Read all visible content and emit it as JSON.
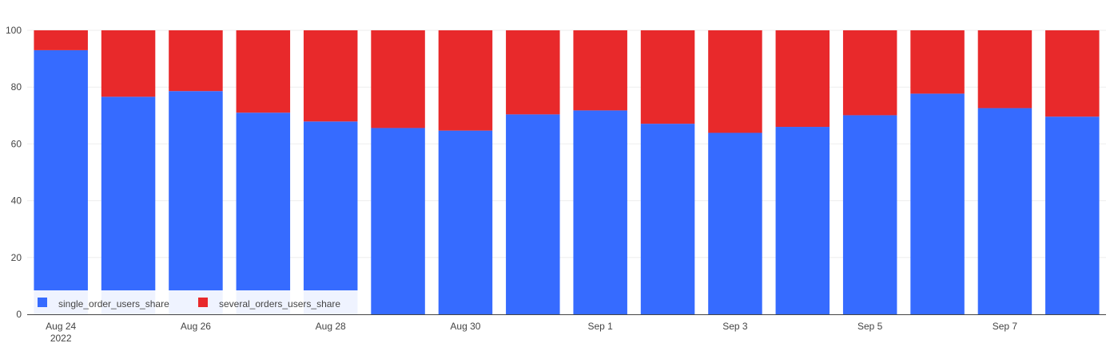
{
  "chart_data": {
    "type": "bar",
    "stacked": true,
    "x": [
      "2022-08-24",
      "2022-08-25",
      "2022-08-26",
      "2022-08-27",
      "2022-08-28",
      "2022-08-29",
      "2022-08-30",
      "2022-08-31",
      "2022-09-01",
      "2022-09-02",
      "2022-09-03",
      "2022-09-04",
      "2022-09-05",
      "2022-09-06",
      "2022-09-07",
      "2022-09-08"
    ],
    "series": [
      {
        "name": "single_order_users_share",
        "color": "#366bff",
        "values": [
          93.0,
          76.6,
          78.6,
          71.0,
          67.9,
          65.6,
          64.7,
          70.4,
          71.8,
          67.1,
          63.9,
          66.0,
          70.1,
          77.7,
          72.6,
          69.6
        ]
      },
      {
        "name": "several_orders_users_share",
        "color": "#e8292b",
        "values": [
          7.0,
          23.4,
          21.4,
          29.0,
          32.1,
          34.4,
          35.3,
          29.6,
          28.2,
          32.9,
          36.1,
          34.0,
          29.9,
          22.3,
          27.4,
          30.4
        ]
      }
    ],
    "ylim": [
      0,
      100
    ],
    "yticks": [
      "0",
      "20",
      "40",
      "60",
      "80",
      "100"
    ],
    "xticks": [
      {
        "index": 0,
        "label": "Aug 24",
        "sublabel": "2022"
      },
      {
        "index": 2,
        "label": "Aug 26",
        "sublabel": ""
      },
      {
        "index": 4,
        "label": "Aug 28",
        "sublabel": ""
      },
      {
        "index": 6,
        "label": "Aug 30",
        "sublabel": ""
      },
      {
        "index": 8,
        "label": "Sep 1",
        "sublabel": ""
      },
      {
        "index": 10,
        "label": "Sep 3",
        "sublabel": ""
      },
      {
        "index": 12,
        "label": "Sep 5",
        "sublabel": ""
      },
      {
        "index": 14,
        "label": "Sep 7",
        "sublabel": ""
      }
    ],
    "title": "",
    "xlabel": "",
    "ylabel": "",
    "grid": true,
    "legend_position": "bottom-left"
  }
}
